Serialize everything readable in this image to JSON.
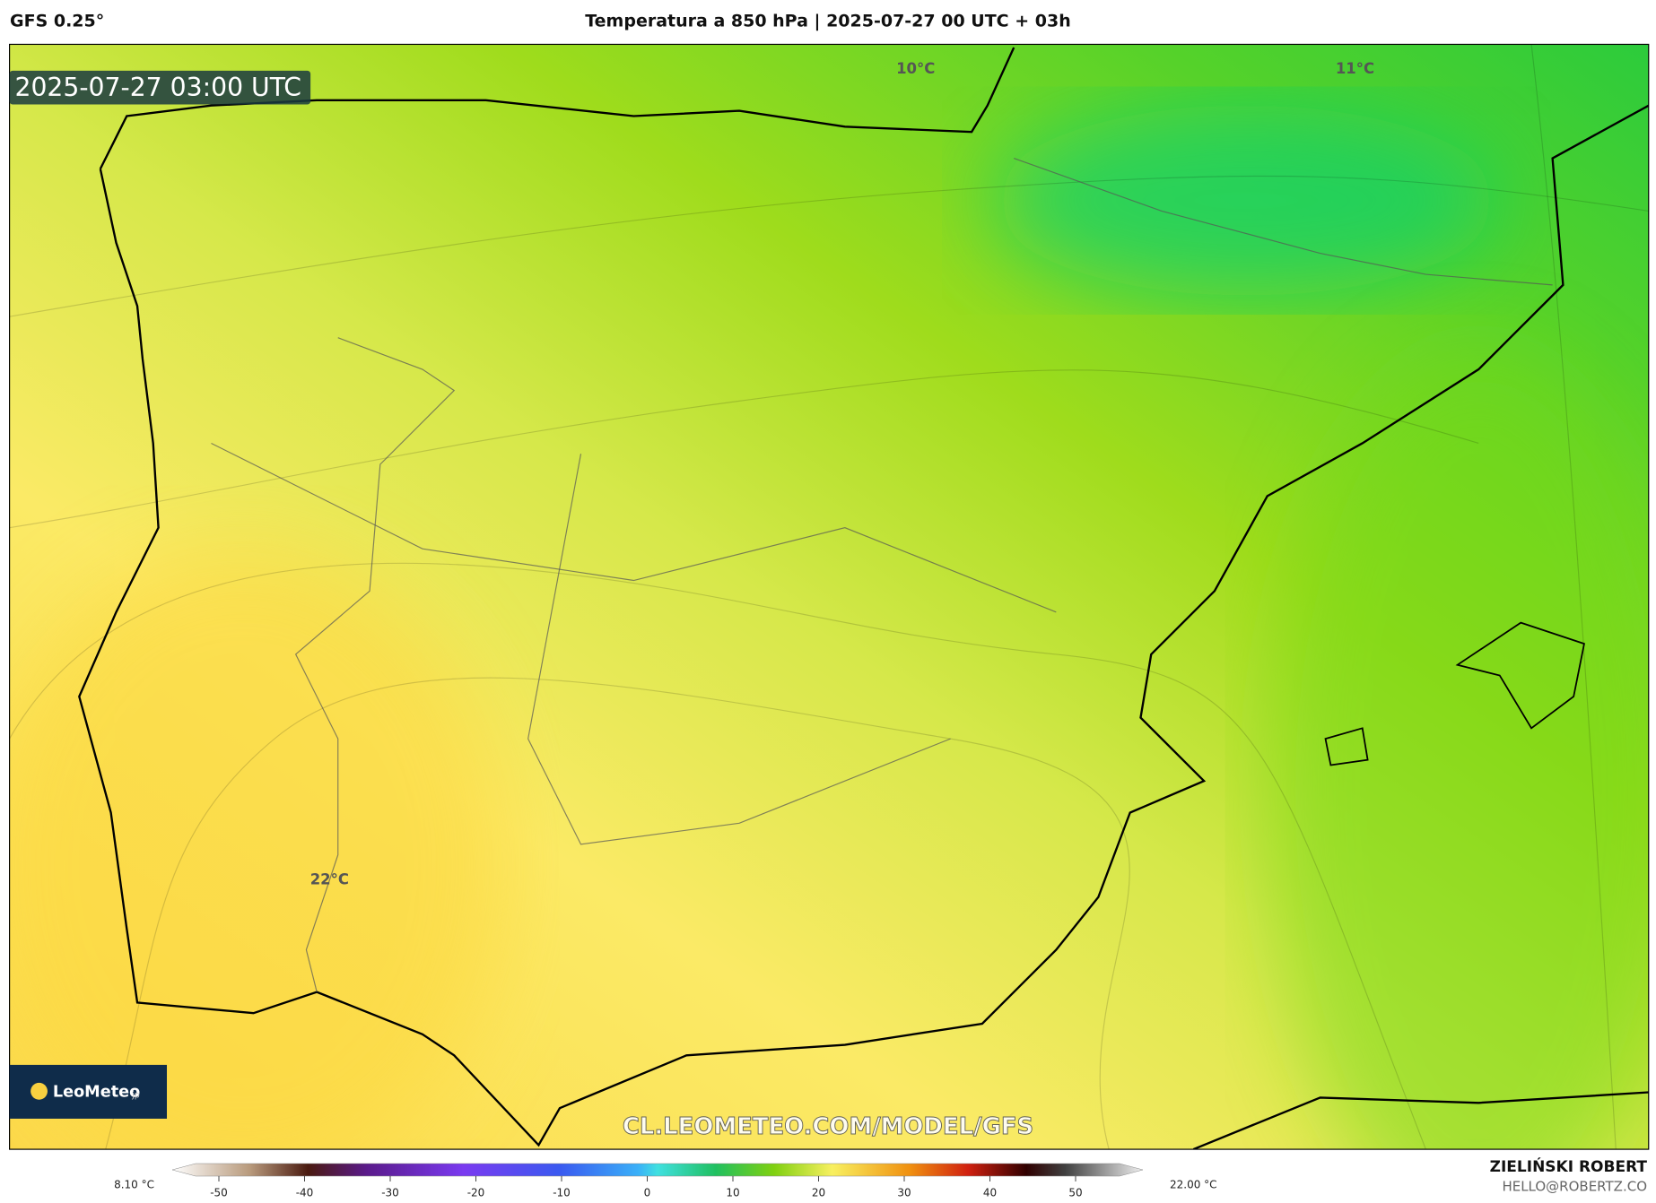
{
  "header": {
    "model": "GFS 0.25°",
    "title": "Temperatura a 850 hPa | 2025-07-27 00 UTC + 03h"
  },
  "map": {
    "timestamp": "2025-07-27 03:00 UTC",
    "contour_labels": [
      "10°C",
      "11°C",
      "22°C"
    ],
    "logo": "LeoMeteo",
    "logo_suffix": "jp",
    "watermark": "CL.LEOMETEO.COM/MODEL/GFS"
  },
  "colorbar": {
    "min_label": "8.10 °C",
    "max_label": "22.00 °C",
    "ticks": [
      -50,
      -40,
      -30,
      -20,
      -10,
      0,
      10,
      20,
      30,
      40,
      50
    ]
  },
  "footer": {
    "author": "ZIELIŃSKI ROBERT",
    "email": "HELLO@ROBERTZ.CO"
  }
}
